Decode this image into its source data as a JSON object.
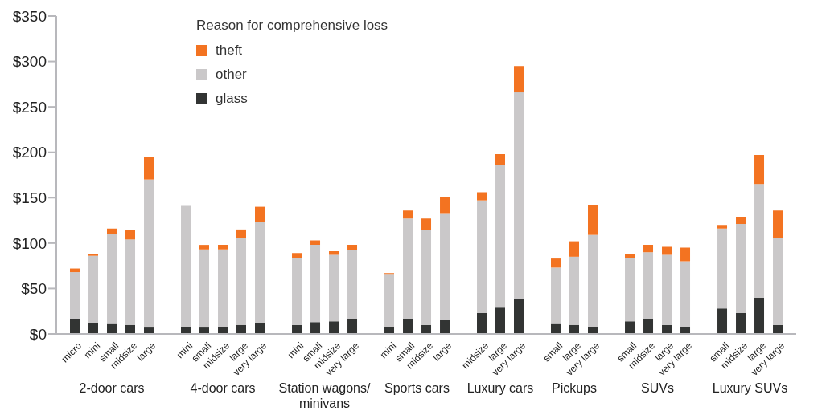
{
  "chart_data": [
    {
      "type": "bar",
      "stacked": true,
      "xlabel": "2-door cars",
      "legend": "top",
      "legend_title": "Reason for comprehensive loss",
      "categories": [
        "micro",
        "mini",
        "small",
        "midsize",
        "large"
      ],
      "ylim": [
        0,
        350
      ],
      "yticks": [
        {
          "value": 0,
          "label": "$0"
        },
        {
          "value": 50,
          "label": "$50"
        },
        {
          "value": 100,
          "label": "$100"
        },
        {
          "value": 150,
          "label": "$150"
        },
        {
          "value": 200,
          "label": "$200"
        },
        {
          "value": 250,
          "label": "$250"
        },
        {
          "value": 300,
          "label": "$300"
        },
        {
          "value": 350,
          "label": "$350"
        }
      ],
      "series": [
        {
          "name": "glass",
          "color": "#323433",
          "values": [
            16,
            12,
            11,
            10,
            7
          ]
        },
        {
          "name": "other",
          "color": "#cac8c9",
          "values": [
            52,
            74,
            99,
            94,
            163
          ]
        },
        {
          "name": "theft",
          "color": "#f37321",
          "values": [
            4,
            2,
            6,
            10,
            25
          ]
        }
      ]
    },
    {
      "type": "bar",
      "stacked": true,
      "xlabel": "4-door cars",
      "tick_labels": "x",
      "categories": [
        "mini",
        "small",
        "midsize",
        "large",
        "very large"
      ],
      "ylim": [
        0,
        350
      ],
      "series": [
        {
          "color": "#323433",
          "values": [
            8,
            7,
            8,
            10,
            12
          ]
        },
        {
          "color": "#cac8c9",
          "values": [
            133,
            86,
            85,
            96,
            111
          ]
        },
        {
          "color": "#f37321",
          "values": [
            0,
            5,
            5,
            9,
            17
          ]
        }
      ]
    },
    {
      "type": "bar",
      "stacked": true,
      "xlabel": "Station wagons/minivans",
      "tick_labels": "x",
      "categories": [
        "mini",
        "small",
        "midsize",
        "very large"
      ],
      "ylim": [
        0,
        350
      ],
      "series": [
        {
          "color": "#323433",
          "values": [
            10,
            13,
            14,
            16
          ]
        },
        {
          "color": "#cac8c9",
          "values": [
            74,
            85,
            73,
            76
          ]
        },
        {
          "color": "#f37321",
          "values": [
            5,
            5,
            4,
            6
          ]
        }
      ]
    },
    {
      "type": "bar",
      "stacked": true,
      "xlabel": "Sports cars",
      "tick_labels": "x",
      "categories": [
        "mini",
        "small",
        "midsize",
        "large"
      ],
      "ylim": [
        0,
        350
      ],
      "series": [
        {
          "color": "#323433",
          "values": [
            7,
            16,
            10,
            15
          ]
        },
        {
          "color": "#cac8c9",
          "values": [
            59,
            111,
            105,
            118
          ]
        },
        {
          "color": "#f37321",
          "values": [
            1,
            9,
            12,
            18
          ]
        }
      ]
    },
    {
      "type": "bar",
      "stacked": true,
      "xlabel": "Luxury cars",
      "tick_labels": "x",
      "categories": [
        "midsize",
        "large",
        "very large"
      ],
      "ylim": [
        0,
        350
      ],
      "series": [
        {
          "color": "#323433",
          "values": [
            23,
            29,
            38
          ]
        },
        {
          "color": "#cac8c9",
          "values": [
            124,
            157,
            228
          ]
        },
        {
          "color": "#f37321",
          "values": [
            9,
            12,
            29
          ]
        }
      ]
    },
    {
      "type": "bar",
      "stacked": true,
      "xlabel": "Pickups",
      "tick_labels": "x",
      "categories": [
        "small",
        "large",
        "very large"
      ],
      "ylim": [
        0,
        350
      ],
      "series": [
        {
          "color": "#323433",
          "values": [
            11,
            10,
            8
          ]
        },
        {
          "color": "#cac8c9",
          "values": [
            62,
            75,
            101
          ]
        },
        {
          "color": "#f37321",
          "values": [
            10,
            17,
            33
          ]
        }
      ]
    },
    {
      "type": "bar",
      "stacked": true,
      "xlabel": "SUVs",
      "tick_labels": "x",
      "categories": [
        "small",
        "midsize",
        "large",
        "very large"
      ],
      "ylim": [
        0,
        350
      ],
      "series": [
        {
          "color": "#323433",
          "values": [
            14,
            16,
            10,
            8
          ]
        },
        {
          "color": "#cac8c9",
          "values": [
            69,
            74,
            77,
            72
          ]
        },
        {
          "color": "#f37321",
          "values": [
            5,
            8,
            9,
            15
          ]
        }
      ]
    },
    {
      "type": "bar",
      "stacked": true,
      "xlabel": "Luxury SUVs",
      "tick_labels": "x",
      "categories": [
        "small",
        "midsize",
        "large",
        "very large"
      ],
      "ylim": [
        0,
        350
      ],
      "series": [
        {
          "color": "#323433",
          "values": [
            28,
            23,
            40,
            10
          ]
        },
        {
          "color": "#cac8c9",
          "values": [
            88,
            98,
            125,
            96
          ]
        },
        {
          "color": "#f37321",
          "values": [
            4,
            8,
            32,
            30
          ]
        }
      ]
    }
  ]
}
